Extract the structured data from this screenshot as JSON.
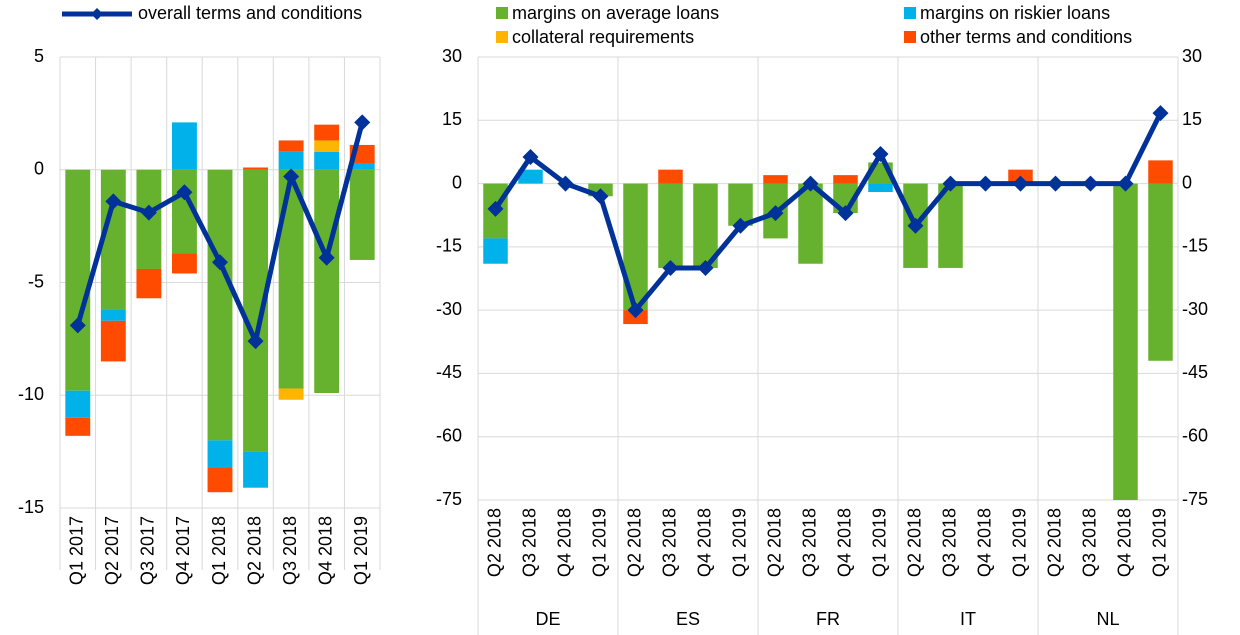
{
  "chart_data": [
    {
      "type": "bar",
      "categories": [
        "Q1 2017",
        "Q2 2017",
        "Q3 2017",
        "Q4 2017",
        "Q1 2018",
        "Q2 2018",
        "Q3 2018",
        "Q4 2018",
        "Q1 2019"
      ],
      "series": [
        {
          "name": "margins on average loans",
          "color": "#66b22e",
          "values": [
            -9.8,
            -6.2,
            -4.4,
            -3.7,
            -12.0,
            -12.5,
            -9.7,
            -9.9,
            -4.0
          ]
        },
        {
          "name": "margins on riskier loans",
          "color": "#00b1ea",
          "values": [
            -1.2,
            -0.5,
            0,
            2.1,
            -1.2,
            -1.6,
            0.8,
            0.8,
            0.3
          ]
        },
        {
          "name": "collateral requirements",
          "color": "#ffb400",
          "values": [
            0,
            0,
            0,
            0,
            0,
            0,
            -0.5,
            0.5,
            0
          ]
        },
        {
          "name": "other terms and conditions",
          "color": "#ff4b00",
          "values": [
            -0.8,
            -1.8,
            -1.3,
            -0.9,
            -1.1,
            0.1,
            0.5,
            0.7,
            0.8
          ]
        }
      ],
      "line": {
        "name": "overall terms and conditions",
        "color": "#003299",
        "values": [
          -6.9,
          -1.4,
          -1.9,
          -1.0,
          -4.1,
          -7.6,
          -0.3,
          -3.9,
          2.1
        ]
      },
      "ylim": [
        -15,
        5
      ],
      "yticks": [
        -15,
        -10,
        -5,
        0,
        5
      ],
      "grid": true
    },
    {
      "type": "bar",
      "groups": [
        "DE",
        "ES",
        "FR",
        "IT",
        "NL"
      ],
      "categories": [
        "Q2 2018",
        "Q3 2018",
        "Q4 2018",
        "Q1 2019",
        "Q2 2018",
        "Q3 2018",
        "Q4 2018",
        "Q1 2019",
        "Q2 2018",
        "Q3 2018",
        "Q4 2018",
        "Q1 2019",
        "Q2 2018",
        "Q3 2018",
        "Q4 2018",
        "Q1 2019",
        "Q2 2018",
        "Q3 2018",
        "Q4 2018",
        "Q1 2019"
      ],
      "series": [
        {
          "color": "#66b22e",
          "values": [
            -13,
            0,
            0,
            -3,
            -30,
            -20,
            -20,
            -10,
            -13,
            -19,
            -7,
            5,
            -20,
            -20,
            0,
            0,
            0,
            0,
            -75,
            -42
          ]
        },
        {
          "color": "#00b1ea",
          "values": [
            -6,
            3.3,
            0,
            0,
            0,
            0,
            0,
            0,
            0,
            0,
            0,
            -2,
            0,
            0,
            0,
            0,
            0,
            0,
            0,
            0
          ]
        },
        {
          "color": "#ffb400",
          "values": [
            0,
            0,
            0,
            0,
            0,
            0,
            0,
            0,
            0,
            0,
            0,
            0,
            0,
            0,
            0,
            0,
            0,
            0,
            0,
            0
          ]
        },
        {
          "color": "#ff4b00",
          "values": [
            0,
            0,
            0,
            0,
            -3.3,
            3.3,
            0,
            0,
            2,
            0,
            2,
            0,
            0,
            0,
            0,
            3.3,
            0,
            0,
            0,
            5.5
          ]
        }
      ],
      "line": {
        "color": "#003299",
        "values": [
          -6,
          6.3,
          0,
          -3,
          -30,
          -20,
          -20,
          -10,
          -7,
          0,
          -7,
          7,
          -10,
          0,
          0,
          0,
          0,
          0,
          0,
          16.7
        ]
      },
      "ylim": [
        -75,
        30
      ],
      "yticks": [
        -75,
        -60,
        -45,
        -30,
        -15,
        0,
        15,
        30
      ],
      "y2lim": [
        -75,
        30
      ],
      "y2ticks": [
        -75,
        -60,
        -45,
        -30,
        -15,
        0,
        15,
        30
      ],
      "grid": true
    }
  ]
}
